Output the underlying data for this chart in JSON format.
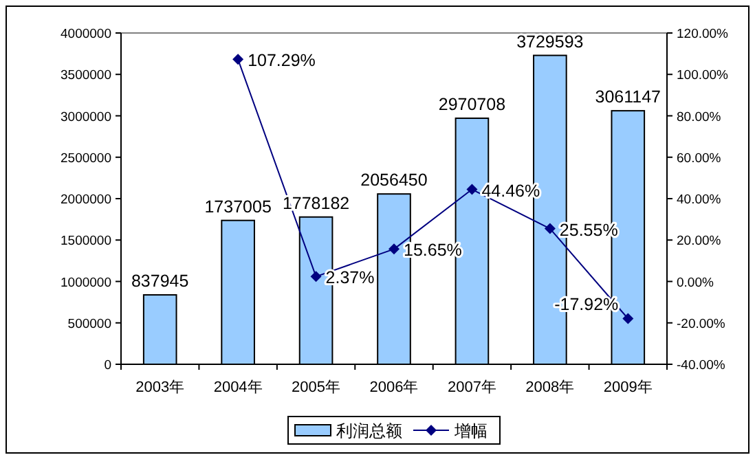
{
  "chart_data": {
    "type": "bar",
    "categories": [
      "2003年",
      "2004年",
      "2005年",
      "2006年",
      "2007年",
      "2008年",
      "2009年"
    ],
    "series": [
      {
        "name": "利润总额",
        "color": "#99ccff",
        "values": [
          837945,
          1737005,
          1778182,
          2056450,
          2970708,
          3729593,
          3061147
        ],
        "value_labels": [
          "837945",
          "1737005",
          "1778182",
          "2056450",
          "2970708",
          "3729593",
          "3061147"
        ]
      },
      {
        "name": "增幅",
        "type": "line",
        "axis": "y2",
        "color": "#000080",
        "marker": "diamond",
        "values": [
          null,
          107.29,
          2.37,
          15.65,
          44.46,
          25.55,
          -17.92
        ],
        "value_labels": [
          null,
          "107.29%",
          "2.37%",
          "15.65%",
          "44.46%",
          "25.55%",
          "-17.92%"
        ]
      }
    ],
    "ylim": [
      0,
      4000000
    ],
    "yticks": [
      0,
      500000,
      1000000,
      1500000,
      2000000,
      2500000,
      3000000,
      3500000,
      4000000
    ],
    "y2lim": [
      -40,
      120
    ],
    "y2ticks": [
      {
        "value": -40,
        "label": "-40.00%"
      },
      {
        "value": -20,
        "label": "-20.00%"
      },
      {
        "value": 0,
        "label": "0.00%"
      },
      {
        "value": 20,
        "label": "20.00%"
      },
      {
        "value": 40,
        "label": "40.00%"
      },
      {
        "value": 60,
        "label": "60.00%"
      },
      {
        "value": 80,
        "label": "80.00%"
      },
      {
        "value": 100,
        "label": "100.00%"
      },
      {
        "value": 120,
        "label": "120.00%"
      }
    ],
    "grid": false,
    "legend": "bottom"
  }
}
